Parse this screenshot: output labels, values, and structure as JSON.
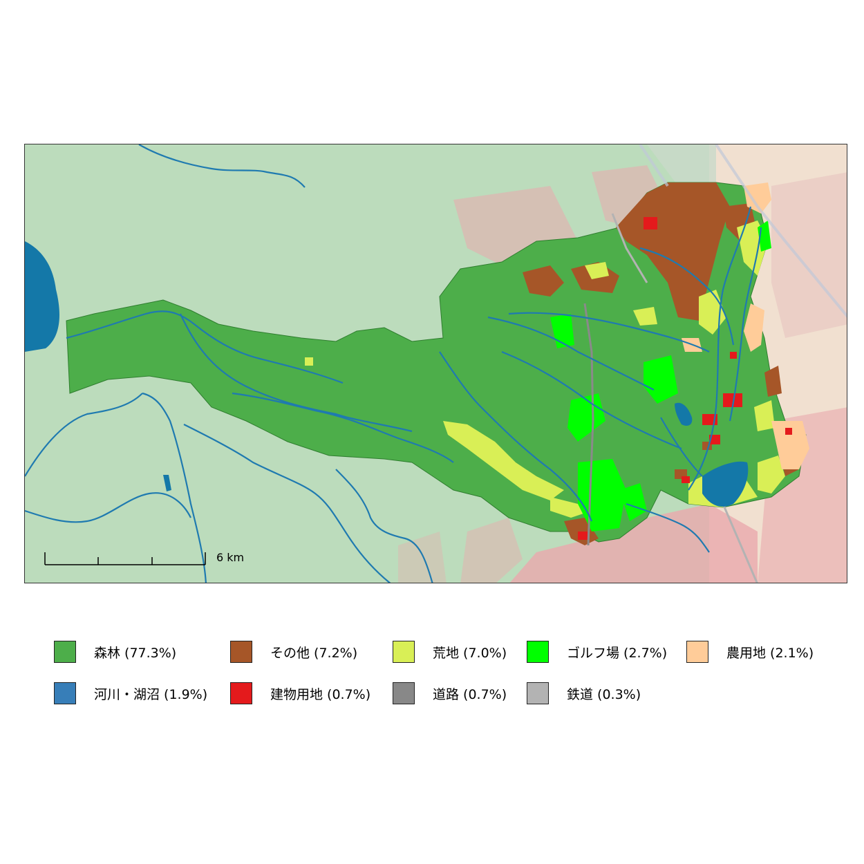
{
  "map": {
    "scale_bar": {
      "label": "6 km"
    },
    "colors": {
      "background": "#bcdcbc",
      "urban": "#eaa9ad",
      "farm_fade": "#f1e0d0",
      "river": "#1f7ab0",
      "lake": "#1478a8"
    }
  },
  "legend": {
    "items": [
      {
        "key": "forest",
        "label": "森林 (77.3%)",
        "color": "#4dae4a"
      },
      {
        "key": "other",
        "label": "その他 (7.2%)",
        "color": "#a65628"
      },
      {
        "key": "wasteland",
        "label": "荒地 (7.0%)",
        "color": "#d9ef56"
      },
      {
        "key": "golf",
        "label": "ゴルフ場 (2.7%)",
        "color": "#00ff00"
      },
      {
        "key": "farmland",
        "label": "農用地 (2.1%)",
        "color": "#ffcc99"
      },
      {
        "key": "water",
        "label": "河川・湖沼 (1.9%)",
        "color": "#377eb8"
      },
      {
        "key": "building",
        "label": "建物用地 (0.7%)",
        "color": "#e41a1c"
      },
      {
        "key": "road",
        "label": "道路 (0.7%)",
        "color": "#888888"
      },
      {
        "key": "railway",
        "label": "鉄道 (0.3%)",
        "color": "#b3b3b3"
      }
    ]
  }
}
